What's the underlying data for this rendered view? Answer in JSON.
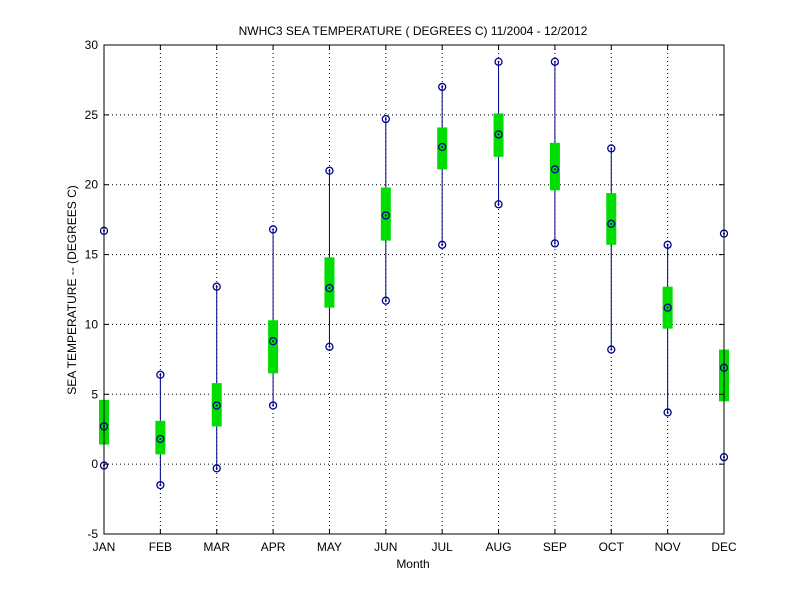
{
  "chart_data": {
    "type": "box",
    "title": "NWHC3  SEA TEMPERATURE ( DEGREES C) 11/2004 - 12/2012",
    "xlabel": "Month",
    "ylabel": "SEA TEMPERATURE -- (DEGREES C)",
    "categories": [
      "JAN",
      "FEB",
      "MAR",
      "APR",
      "MAY",
      "JUN",
      "JUL",
      "AUG",
      "SEP",
      "OCT",
      "NOV",
      "DEC"
    ],
    "ylim": [
      -5,
      30
    ],
    "yticks": [
      -5,
      0,
      5,
      10,
      15,
      20,
      25,
      30
    ],
    "grid": true,
    "series": [
      {
        "min": [
          -0.1,
          -1.5,
          -0.3,
          4.2,
          8.4,
          11.7,
          15.7,
          18.6,
          15.8,
          8.2,
          3.7,
          0.5
        ],
        "q1": [
          1.4,
          0.7,
          2.7,
          6.5,
          11.2,
          16.0,
          21.1,
          22.0,
          19.6,
          15.7,
          9.7,
          4.5
        ],
        "median": [
          2.7,
          1.8,
          4.2,
          8.8,
          12.6,
          17.8,
          22.7,
          23.6,
          21.1,
          17.2,
          11.2,
          6.9
        ],
        "q3": [
          4.6,
          3.1,
          5.8,
          10.3,
          14.8,
          19.8,
          24.1,
          25.1,
          23.0,
          19.4,
          12.7,
          8.2
        ],
        "max": [
          16.7,
          6.4,
          12.7,
          16.8,
          21.0,
          24.7,
          27.0,
          28.8,
          28.8,
          22.6,
          15.7,
          16.5
        ]
      }
    ],
    "colors": {
      "whisker": "#00008b",
      "box": "#00dd00",
      "marker": "#00008b",
      "axis": "#000000",
      "grid": "#000000"
    }
  }
}
